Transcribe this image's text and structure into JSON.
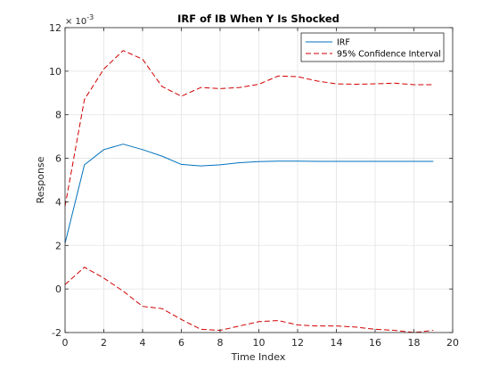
{
  "chart_data": {
    "type": "line",
    "title": "IRF of IB When Y Is Shocked",
    "xlabel": "Time Index",
    "ylabel": "Response",
    "xlim": [
      0,
      20
    ],
    "ylim": [
      -2,
      12
    ],
    "x_ticks": [
      "0",
      "2",
      "4",
      "6",
      "8",
      "10",
      "12",
      "14",
      "16",
      "18",
      "20"
    ],
    "y_ticks": [
      "-2",
      "0",
      "2",
      "4",
      "6",
      "8",
      "10",
      "12"
    ],
    "y_exponent_base": "× 10",
    "y_exponent_power": "-3",
    "grid": true,
    "legend_position": "top-right",
    "x": [
      0,
      1,
      2,
      3,
      4,
      5,
      6,
      7,
      8,
      9,
      10,
      11,
      12,
      13,
      14,
      15,
      16,
      17,
      18,
      19
    ],
    "series": [
      {
        "name": "IRF",
        "color": "#0072BD",
        "style": "solid",
        "values": [
          2.1,
          5.7,
          6.4,
          6.65,
          6.4,
          6.1,
          5.72,
          5.65,
          5.7,
          5.8,
          5.85,
          5.87,
          5.87,
          5.86,
          5.86,
          5.86,
          5.86,
          5.86,
          5.86,
          5.86
        ]
      },
      {
        "name": "95% Confidence Interval",
        "color": "#D00000",
        "style": "dashed",
        "values": [
          3.8,
          8.7,
          10.1,
          10.95,
          10.55,
          9.3,
          8.85,
          9.25,
          9.2,
          9.25,
          9.4,
          9.78,
          9.75,
          9.55,
          9.42,
          9.4,
          9.42,
          9.45,
          9.38,
          9.38
        ]
      },
      {
        "name": "",
        "color": "#D00000",
        "style": "dashed",
        "values": [
          0.2,
          1.0,
          0.5,
          -0.1,
          -0.8,
          -0.9,
          -1.4,
          -1.85,
          -1.9,
          -1.7,
          -1.5,
          -1.45,
          -1.65,
          -1.7,
          -1.7,
          -1.75,
          -1.85,
          -1.9,
          -2.0,
          -1.9
        ]
      }
    ]
  }
}
